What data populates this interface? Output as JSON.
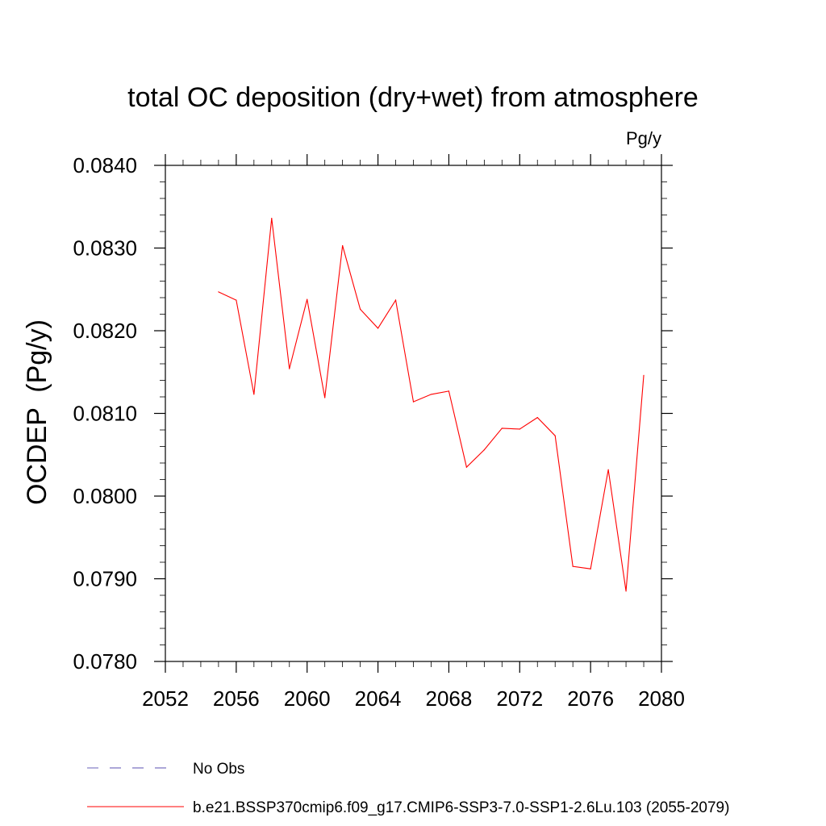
{
  "chart_data": {
    "type": "line",
    "title": "total OC deposition (dry+wet) from atmosphere",
    "units_label": "Pg/y",
    "xlabel": "",
    "ylabel": "OCDEP  (Pg/y)",
    "xlim": [
      2052,
      2080
    ],
    "ylim": [
      0.078,
      0.084
    ],
    "x_ticks": [
      2052,
      2056,
      2060,
      2064,
      2068,
      2072,
      2076,
      2080
    ],
    "y_ticks": [
      0.078,
      0.079,
      0.08,
      0.081,
      0.082,
      0.083,
      0.084
    ],
    "y_tick_labels": [
      "0.0780",
      "0.0790",
      "0.0800",
      "0.0810",
      "0.0820",
      "0.0830",
      "0.0840"
    ],
    "grid": false,
    "legend_position": "bottom",
    "series": [
      {
        "name": "b.e21.BSSP370cmip6.f09_g17.CMIP6-SSP3-7.0-SSP1-2.6Lu.103 (2055-2079)",
        "color": "#ff0000",
        "style": "solid",
        "x": [
          2055,
          2056,
          2057,
          2058,
          2059,
          2060,
          2061,
          2062,
          2063,
          2064,
          2065,
          2066,
          2067,
          2068,
          2069,
          2070,
          2071,
          2072,
          2073,
          2074,
          2075,
          2076,
          2077,
          2078,
          2079
        ],
        "values": [
          0.08247,
          0.08237,
          0.08123,
          0.08336,
          0.08154,
          0.08238,
          0.08119,
          0.08303,
          0.08226,
          0.08203,
          0.08237,
          0.08114,
          0.08123,
          0.08127,
          0.08035,
          0.08056,
          0.08082,
          0.08081,
          0.08095,
          0.08073,
          0.07915,
          0.07912,
          0.08032,
          0.07885,
          0.08146
        ]
      }
    ],
    "legend": [
      {
        "label": "No Obs",
        "color": "#5a4fb0",
        "style": "dashed"
      },
      {
        "label": "b.e21.BSSP370cmip6.f09_g17.CMIP6-SSP3-7.0-SSP1-2.6Lu.103 (2055-2079)",
        "color": "#ff0000",
        "style": "solid"
      }
    ]
  }
}
